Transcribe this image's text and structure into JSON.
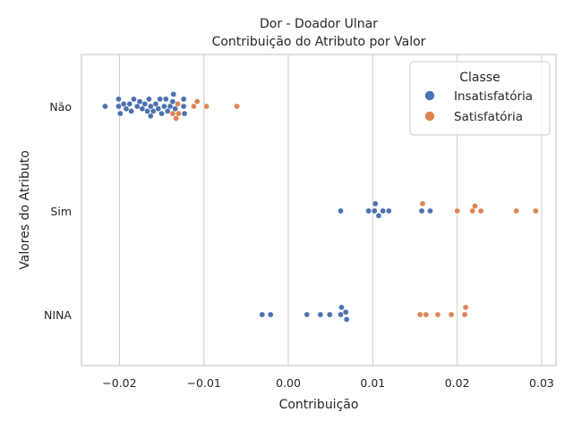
{
  "chart_data": {
    "type": "scatter",
    "subtype": "swarm",
    "title": "Dor - Doador Ulnar",
    "subtitle": "Contribuição do Atributo por Valor",
    "xlabel": "Contribuição",
    "ylabel": "Valores do Atributo",
    "xlim": [
      -0.0245,
      0.0317
    ],
    "xticks": [
      -0.02,
      -0.01,
      0.0,
      0.01,
      0.02,
      0.03
    ],
    "xtick_labels": [
      "−0.02",
      "−0.01",
      "0.00",
      "0.01",
      "0.02",
      "0.03"
    ],
    "categories": [
      "Não",
      "Sim",
      "NINA"
    ],
    "grid": true,
    "legend": {
      "title": "Classe",
      "position": "top-right",
      "entries": [
        {
          "name": "Insatisfatória",
          "color": "#4c72b0"
        },
        {
          "name": "Satisfatória",
          "color": "#dd8452"
        }
      ]
    },
    "series": [
      {
        "name": "Insatisfatória",
        "color": "#4c72b0",
        "points": {
          "Não": [
            -0.0217,
            -0.0201,
            -0.0201,
            -0.0199,
            -0.0195,
            -0.0192,
            -0.0188,
            -0.0186,
            -0.0183,
            -0.0179,
            -0.0176,
            -0.0173,
            -0.017,
            -0.0167,
            -0.0165,
            -0.0163,
            -0.0163,
            -0.016,
            -0.0157,
            -0.0154,
            -0.0152,
            -0.015,
            -0.0147,
            -0.0145,
            -0.0143,
            -0.014,
            -0.0137,
            -0.0136,
            -0.0134,
            -0.0124,
            -0.0124,
            -0.0123
          ],
          "Sim": [
            0.0062,
            0.0095,
            0.0102,
            0.0103,
            0.0107,
            0.0112,
            0.0119,
            0.0158,
            0.0168
          ],
          "NINA": [
            -0.0031,
            -0.0021,
            0.0022,
            0.0038,
            0.0049,
            0.0062,
            0.0063,
            0.0068,
            0.0069
          ]
        }
      },
      {
        "name": "Satisfatória",
        "color": "#dd8452",
        "points": {
          "Não": [
            -0.0131,
            -0.0137,
            -0.0133,
            -0.013,
            -0.0112,
            -0.0108,
            -0.0097,
            -0.0061
          ],
          "Sim": [
            0.0159,
            0.02,
            0.0218,
            0.0221,
            0.0228,
            0.027,
            0.0293
          ],
          "NINA": [
            0.0156,
            0.0163,
            0.0177,
            0.0193,
            0.0209,
            0.021
          ]
        }
      }
    ]
  }
}
